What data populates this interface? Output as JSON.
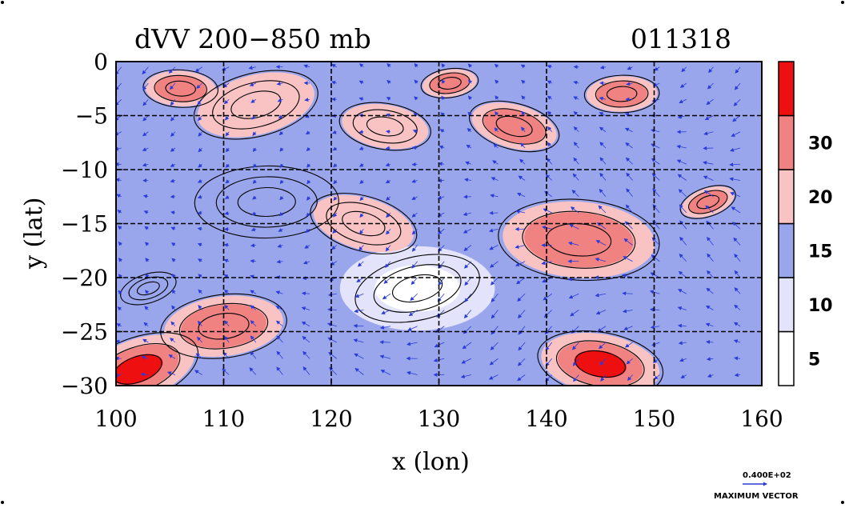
{
  "chart_data": {
    "type": "heatmap",
    "title": "dVV 200−850 mb",
    "date_label": "011318",
    "xlabel": "x (lon)",
    "ylabel": "y (lat)",
    "xlim": [
      100,
      160
    ],
    "ylim": [
      -30,
      0
    ],
    "xticks": [
      "100",
      "110",
      "120",
      "130",
      "140",
      "150",
      "160"
    ],
    "xtick_values": [
      100,
      110,
      120,
      130,
      140,
      150,
      160
    ],
    "yticks": [
      "0",
      "−5",
      "−10",
      "−15",
      "−20",
      "−25",
      "−30"
    ],
    "ytick_values": [
      0,
      -5,
      -10,
      -15,
      -20,
      -25,
      -30
    ],
    "grid": true,
    "colorbar": {
      "levels": [
        "5",
        "10",
        "15",
        "20",
        "30"
      ],
      "level_values": [
        5,
        10,
        15,
        20,
        30
      ],
      "colors": [
        "#ffffff",
        "#e3e3fb",
        "#9aa6ec",
        "#f9c3c3",
        "#f08282",
        "#ee1010"
      ]
    },
    "vector_legend": {
      "value": "0.400E+02",
      "label": "MAXIMUM VECTOR"
    },
    "regions": [
      {
        "lon": 102,
        "lat": -28.5,
        "value": 32
      },
      {
        "lon": 106,
        "lat": -2.5,
        "value": 22
      },
      {
        "lon": 113,
        "lat": -4,
        "value": 18
      },
      {
        "lon": 125,
        "lat": -6,
        "value": 16
      },
      {
        "lon": 131,
        "lat": -2,
        "value": 21
      },
      {
        "lon": 137,
        "lat": -6,
        "value": 23
      },
      {
        "lon": 147,
        "lat": -3,
        "value": 22
      },
      {
        "lon": 155,
        "lat": -13,
        "value": 21
      },
      {
        "lon": 143,
        "lat": -16.5,
        "value": 20
      },
      {
        "lon": 128,
        "lat": -21,
        "value": 4
      },
      {
        "lon": 145,
        "lat": -28,
        "value": 32
      },
      {
        "lon": 110,
        "lat": -24.5,
        "value": 25
      },
      {
        "lon": 123,
        "lat": -15,
        "value": 17
      },
      {
        "lon": 114,
        "lat": -13,
        "value": 12
      },
      {
        "lon": 103,
        "lat": -21,
        "value": 14
      }
    ]
  }
}
